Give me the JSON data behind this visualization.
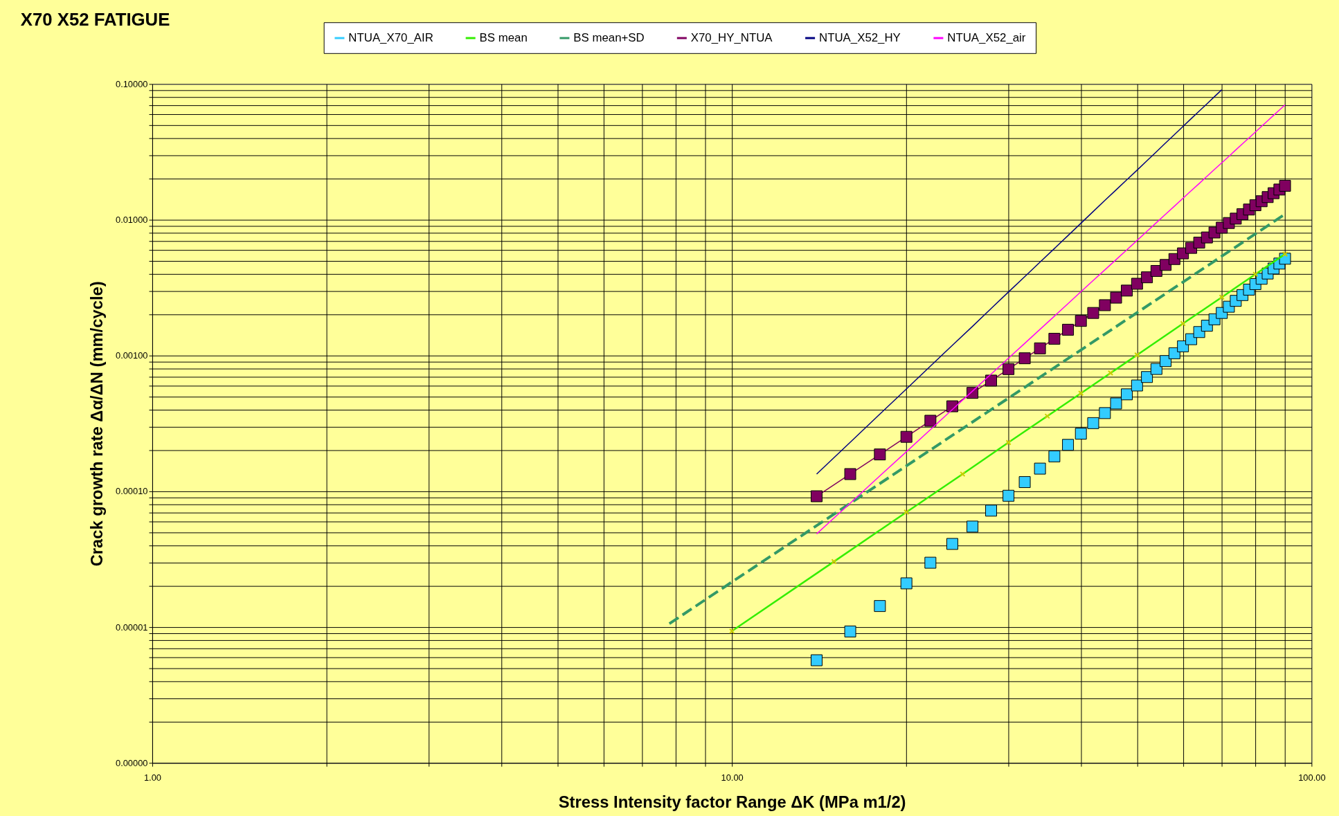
{
  "chart_data": {
    "type": "line",
    "title": "X70 X52 FATIGUE",
    "xlabel": "Stress Intensity  factor Range ΔK (MPa m1/2)",
    "ylabel": "Crack growth rate Δα/ΔN (mm/cycle)",
    "log": "xy",
    "grid": true,
    "legend": "top",
    "xlim": [
      1,
      100
    ],
    "ylim": [
      1e-06,
      0.1
    ],
    "xticks": [
      {
        "value": 1,
        "label": "1.00"
      },
      {
        "value": 2,
        "label": null
      },
      {
        "value": 3,
        "label": null
      },
      {
        "value": 4,
        "label": null
      },
      {
        "value": 5,
        "label": null
      },
      {
        "value": 6,
        "label": null
      },
      {
        "value": 7,
        "label": null
      },
      {
        "value": 8,
        "label": null
      },
      {
        "value": 9,
        "label": null
      },
      {
        "value": 10,
        "label": "10.00"
      },
      {
        "value": 20,
        "label": null
      },
      {
        "value": 30,
        "label": null
      },
      {
        "value": 40,
        "label": null
      },
      {
        "value": 50,
        "label": null
      },
      {
        "value": 60,
        "label": null
      },
      {
        "value": 70,
        "label": null
      },
      {
        "value": 80,
        "label": null
      },
      {
        "value": 90,
        "label": null
      },
      {
        "value": 100,
        "label": "100.00"
      }
    ],
    "yticks": [
      {
        "value": 1e-06,
        "label": "0.00000"
      },
      {
        "value": 2e-06,
        "label": null
      },
      {
        "value": 3e-06,
        "label": null
      },
      {
        "value": 4e-06,
        "label": null
      },
      {
        "value": 5e-06,
        "label": null
      },
      {
        "value": 6e-06,
        "label": null
      },
      {
        "value": 7e-06,
        "label": null
      },
      {
        "value": 8e-06,
        "label": null
      },
      {
        "value": 9e-06,
        "label": null
      },
      {
        "value": 1e-05,
        "label": "0.00001"
      },
      {
        "value": 2e-05,
        "label": null
      },
      {
        "value": 3e-05,
        "label": null
      },
      {
        "value": 4e-05,
        "label": null
      },
      {
        "value": 5e-05,
        "label": null
      },
      {
        "value": 6e-05,
        "label": null
      },
      {
        "value": 7e-05,
        "label": null
      },
      {
        "value": 8e-05,
        "label": null
      },
      {
        "value": 9e-05,
        "label": null
      },
      {
        "value": 0.0001,
        "label": "0.00010"
      },
      {
        "value": 0.0002,
        "label": null
      },
      {
        "value": 0.0003,
        "label": null
      },
      {
        "value": 0.0004,
        "label": null
      },
      {
        "value": 0.0005,
        "label": null
      },
      {
        "value": 0.0006,
        "label": null
      },
      {
        "value": 0.0007,
        "label": null
      },
      {
        "value": 0.0008,
        "label": null
      },
      {
        "value": 0.0009,
        "label": null
      },
      {
        "value": 0.001,
        "label": "0.00100"
      },
      {
        "value": 0.002,
        "label": null
      },
      {
        "value": 0.003,
        "label": null
      },
      {
        "value": 0.004,
        "label": null
      },
      {
        "value": 0.005,
        "label": null
      },
      {
        "value": 0.006,
        "label": null
      },
      {
        "value": 0.007,
        "label": null
      },
      {
        "value": 0.008,
        "label": null
      },
      {
        "value": 0.009,
        "label": null
      },
      {
        "value": 0.01,
        "label": "0.01000"
      },
      {
        "value": 0.02,
        "label": null
      },
      {
        "value": 0.03,
        "label": null
      },
      {
        "value": 0.04,
        "label": null
      },
      {
        "value": 0.05,
        "label": null
      },
      {
        "value": 0.06,
        "label": null
      },
      {
        "value": 0.07,
        "label": null
      },
      {
        "value": 0.08,
        "label": null
      },
      {
        "value": 0.09,
        "label": null
      },
      {
        "value": 0.1,
        "label": "0.10000"
      }
    ],
    "series": [
      {
        "name": "NTUA_X70_AIR",
        "type": "scatter",
        "marker": "square",
        "color": "#33ccff",
        "x": [
          14,
          16,
          18,
          20,
          22,
          24,
          26,
          28,
          30,
          32,
          34,
          36,
          38,
          40,
          42,
          44,
          46,
          48,
          50,
          52,
          54,
          56,
          58,
          60,
          62,
          64,
          66,
          68,
          70,
          72,
          74,
          76,
          78,
          80,
          82,
          84,
          86,
          88,
          90
        ],
        "values": [
          5.7e-06,
          9.29e-06,
          1.43e-05,
          2.1e-05,
          2.98e-05,
          4.1e-05,
          5.5e-05,
          7.21e-05,
          9.28e-05,
          0.000117,
          0.000147,
          0.000181,
          0.00022,
          0.000266,
          0.000318,
          0.000377,
          0.000444,
          0.000518,
          0.000602,
          0.000695,
          0.000797,
          0.000911,
          0.00104,
          0.00117,
          0.00132,
          0.00149,
          0.00166,
          0.00185,
          0.00206,
          0.00229,
          0.00253,
          0.00279,
          0.00306,
          0.00336,
          0.00368,
          0.00402,
          0.00438,
          0.00476,
          0.00517
        ]
      },
      {
        "name": "BS mean",
        "marker": "cross",
        "line_style": "solid",
        "color": "#33ee00",
        "x": [
          10,
          15,
          20,
          25,
          30,
          35,
          40,
          45,
          50,
          60,
          70,
          80,
          90
        ],
        "values": [
          9.35e-06,
          3.04e-05,
          7.03e-05,
          0.000134,
          0.000229,
          0.000358,
          0.000528,
          0.000744,
          0.00101,
          0.00172,
          0.00269,
          0.00397,
          0.00559
        ]
      },
      {
        "name": "BS mean+SD",
        "marker": "none",
        "line_style": "dashed",
        "color": "#339966",
        "x": [
          7.8,
          10,
          20,
          30,
          50,
          70,
          90
        ],
        "values": [
          1.06e-05,
          2.15e-05,
          0.000154,
          0.000486,
          0.00207,
          0.00539,
          0.011
        ]
      },
      {
        "name": "X70_HY_NTUA",
        "marker": "square",
        "line_style": "solid",
        "color": "#800060",
        "x": [
          14,
          16,
          18,
          20,
          22,
          24,
          26,
          28,
          30,
          32,
          34,
          36,
          38,
          40,
          42,
          44,
          46,
          48,
          50,
          52,
          54,
          56,
          58,
          60,
          62,
          64,
          66,
          68,
          70,
          72,
          74,
          76,
          78,
          80,
          82,
          84,
          86,
          88,
          90
        ],
        "values": [
          9.2e-05,
          0.000134,
          0.000187,
          0.000252,
          0.000331,
          0.000423,
          0.000531,
          0.000654,
          0.000795,
          0.000955,
          0.00113,
          0.00133,
          0.00155,
          0.0018,
          0.00206,
          0.00235,
          0.00267,
          0.00301,
          0.00338,
          0.00377,
          0.0042,
          0.00465,
          0.00514,
          0.00566,
          0.00621,
          0.00679,
          0.00741,
          0.00806,
          0.00875,
          0.00947,
          0.0102,
          0.011,
          0.0119,
          0.0128,
          0.0137,
          0.0147,
          0.0157,
          0.0167,
          0.0178
        ]
      },
      {
        "name": "NTUA_X52_HY",
        "line_style": "solid",
        "color": "#000080",
        "x": [
          14,
          16,
          18,
          20,
          22,
          24,
          26,
          28,
          30,
          32,
          34,
          36,
          38,
          40,
          42,
          44,
          46,
          48,
          50,
          52,
          54,
          56,
          58,
          60,
          62,
          64,
          66,
          68,
          70
        ],
        "values": [
          0.000134,
          0.00023,
          0.000371,
          0.000568,
          0.000836,
          0.00119,
          0.00164,
          0.00222,
          0.00294,
          0.00381,
          0.00488,
          0.00614,
          0.00765,
          0.00942,
          0.0115,
          0.0139,
          0.0166,
          0.0197,
          0.0232,
          0.0272,
          0.0317,
          0.0368,
          0.0424,
          0.0487,
          0.0556,
          0.0632,
          0.0715,
          0.0807,
          0.0908
        ]
      },
      {
        "name": "NTUA_X52_air",
        "line_style": "solid",
        "color": "#ff00ff",
        "x": [
          14,
          16,
          18,
          20,
          22,
          24,
          26,
          28,
          30,
          32,
          34,
          36,
          38,
          40,
          42,
          44,
          46,
          48,
          50,
          52,
          54,
          56,
          58,
          60,
          62,
          64,
          66,
          68,
          70,
          72,
          74,
          76,
          78,
          80,
          82,
          84,
          86,
          88,
          90
        ],
        "values": [
          4.86e-05,
          8.19e-05,
          0.00013,
          0.000196,
          0.000285,
          0.0004,
          0.000547,
          0.000731,
          0.000957,
          0.00123,
          0.00156,
          0.00195,
          0.00241,
          0.00295,
          0.00357,
          0.00428,
          0.00509,
          0.00601,
          0.00705,
          0.00822,
          0.00953,
          0.011,
          0.0126,
          0.0144,
          0.0164,
          0.0185,
          0.0209,
          0.0235,
          0.0263,
          0.0293,
          0.0327,
          0.0363,
          0.0401,
          0.0443,
          0.0488,
          0.0536,
          0.0588,
          0.0643,
          0.0702
        ]
      }
    ]
  }
}
